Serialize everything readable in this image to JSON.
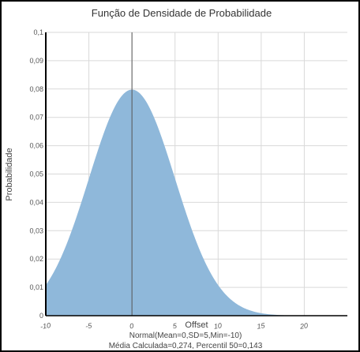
{
  "chart_data": {
    "type": "area",
    "title": "Função de Densidade de Probabilidade",
    "xlabel": "Offset",
    "ylabel": "Probabilidade",
    "xlim": [
      -10,
      25
    ],
    "ylim": [
      0,
      0.1
    ],
    "x_ticks": [
      "-10",
      "-5",
      "0",
      "5",
      "10",
      "15",
      "20"
    ],
    "x_tick_values": [
      -10,
      -5,
      0,
      5,
      10,
      15,
      20
    ],
    "y_ticks": [
      "0",
      "0,01",
      "0,02",
      "0,03",
      "0,04",
      "0,05",
      "0,06",
      "0,07",
      "0,08",
      "0,09",
      "0,1"
    ],
    "y_tick_values": [
      0,
      0.01,
      0.02,
      0.03,
      0.04,
      0.05,
      0.06,
      0.07,
      0.08,
      0.09,
      0.1
    ],
    "grid": true,
    "series": [
      {
        "name": "Normal(Mean=0,SD=5,Min=-10)",
        "distribution": "normal",
        "mean": 0,
        "sd": 5,
        "min": -10,
        "color": "#8fb8da"
      }
    ],
    "reference_line_x": 0,
    "captions": [
      "Normal(Mean=0,SD=5,Min=-10)",
      "Média Calculada=0,274, Percentil 50=0,143"
    ]
  }
}
